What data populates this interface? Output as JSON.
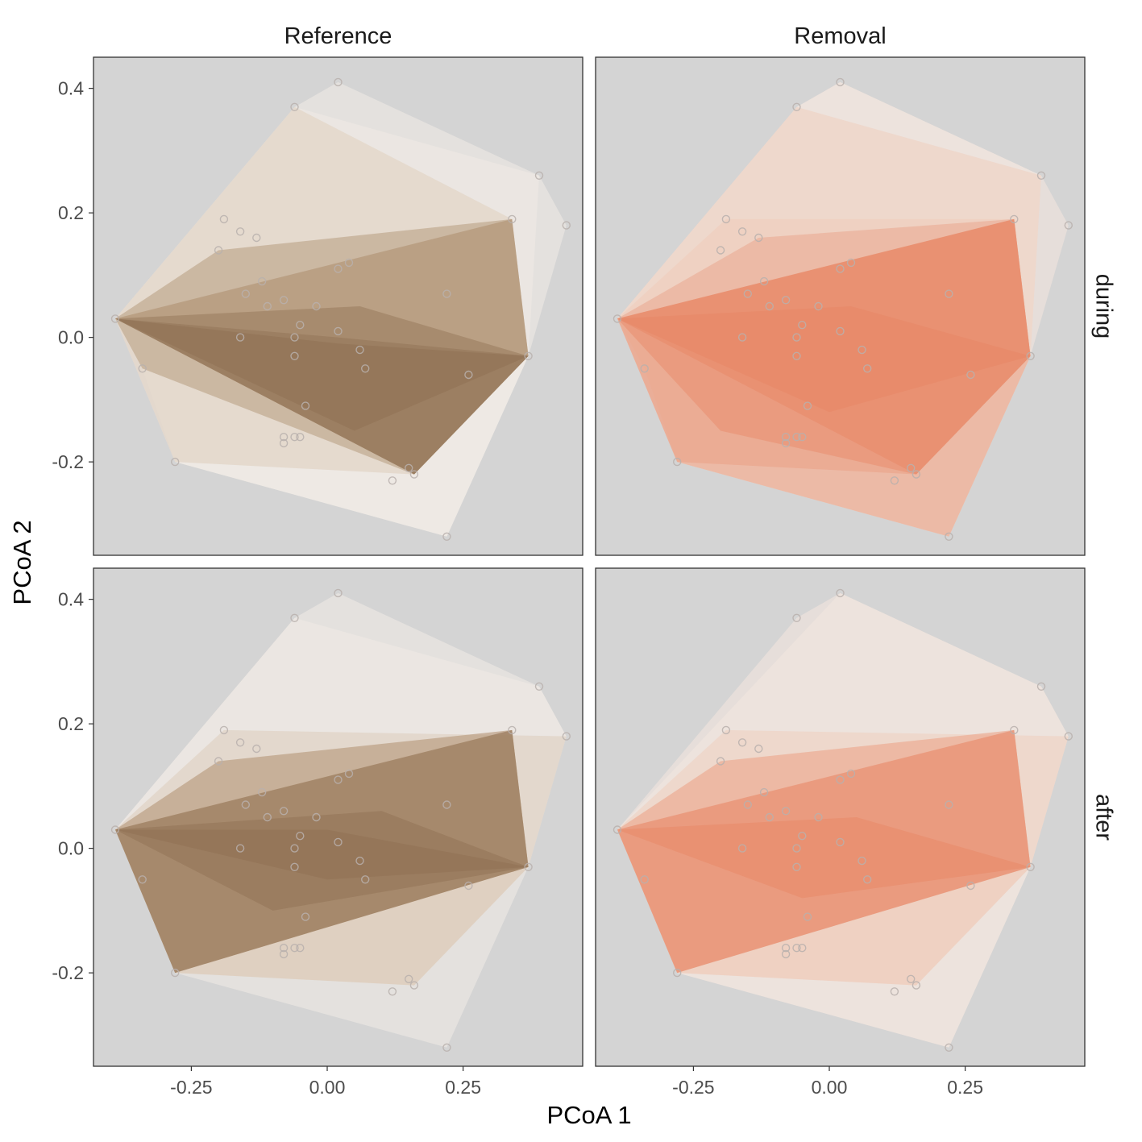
{
  "chart_data": {
    "type": "scatter",
    "subtype": "faceted convex hulls (PCoA ordination)",
    "title": "",
    "xlabel": "PCoA 1",
    "ylabel": "PCoA 2",
    "xlim": [
      -0.43,
      0.47
    ],
    "ylim": [
      -0.35,
      0.45
    ],
    "x_ticks": [
      -0.25,
      0,
      0.25
    ],
    "x_tick_labels": [
      "-0.25",
      "0.00",
      "0.25"
    ],
    "y_ticks": [
      -0.2,
      0,
      0.2,
      0.4
    ],
    "y_tick_labels": [
      "-0.2",
      "0.0",
      "0.2",
      "0.4"
    ],
    "grid": false,
    "panel_background": "#d4d4d4",
    "column_facets": [
      "Reference",
      "Removal"
    ],
    "row_facets": [
      "during",
      "after"
    ],
    "colors": {
      "Reference": [
        "#f3eee7",
        "#d9c6b0",
        "#a68462",
        "#8a6a4c"
      ],
      "Removal": [
        "#f7e8e0",
        "#f0c7b4",
        "#e9987c",
        "#e8825e"
      ],
      "point": "#b8b0ad"
    },
    "points": [
      [
        0.02,
        0.41
      ],
      [
        -0.06,
        0.37
      ],
      [
        0.39,
        0.26
      ],
      [
        0.44,
        0.18
      ],
      [
        0.34,
        0.19
      ],
      [
        -0.19,
        0.19
      ],
      [
        -0.16,
        0.17
      ],
      [
        -0.13,
        0.16
      ],
      [
        -0.2,
        0.14
      ],
      [
        0.04,
        0.12
      ],
      [
        0.02,
        0.11
      ],
      [
        -0.12,
        0.09
      ],
      [
        -0.15,
        0.07
      ],
      [
        -0.08,
        0.06
      ],
      [
        -0.11,
        0.05
      ],
      [
        0.22,
        0.07
      ],
      [
        -0.02,
        0.05
      ],
      [
        -0.39,
        0.03
      ],
      [
        -0.05,
        0.02
      ],
      [
        -0.16,
        0.0
      ],
      [
        0.02,
        0.01
      ],
      [
        -0.06,
        0.0
      ],
      [
        -0.06,
        -0.03
      ],
      [
        0.37,
        -0.03
      ],
      [
        0.06,
        -0.02
      ],
      [
        0.07,
        -0.05
      ],
      [
        0.26,
        -0.06
      ],
      [
        -0.34,
        -0.05
      ],
      [
        -0.04,
        -0.11
      ],
      [
        -0.08,
        -0.16
      ],
      [
        -0.05,
        -0.16
      ],
      [
        -0.06,
        -0.16
      ],
      [
        -0.08,
        -0.17
      ],
      [
        0.15,
        -0.21
      ],
      [
        0.16,
        -0.22
      ],
      [
        -0.28,
        -0.2
      ],
      [
        0.12,
        -0.23
      ],
      [
        0.22,
        -0.32
      ]
    ],
    "panels": [
      {
        "column": "Reference",
        "row": "during",
        "hulls": [
          [
            [
              0.02,
              0.41
            ],
            [
              -0.06,
              0.37
            ],
            [
              -0.39,
              0.03
            ],
            [
              -0.28,
              -0.2
            ],
            [
              0.22,
              -0.32
            ],
            [
              0.37,
              -0.03
            ],
            [
              0.44,
              0.18
            ],
            [
              0.39,
              0.26
            ]
          ],
          [
            [
              -0.06,
              0.37
            ],
            [
              -0.39,
              0.03
            ],
            [
              -0.28,
              -0.2
            ],
            [
              0.22,
              -0.32
            ],
            [
              0.37,
              -0.03
            ],
            [
              0.39,
              0.26
            ]
          ],
          [
            [
              -0.39,
              0.03
            ],
            [
              -0.34,
              -0.05
            ],
            [
              -0.28,
              -0.2
            ],
            [
              0.22,
              -0.32
            ],
            [
              0.37,
              -0.03
            ],
            [
              0.34,
              0.19
            ],
            [
              -0.06,
              0.37
            ]
          ],
          [
            [
              -0.06,
              0.37
            ],
            [
              -0.39,
              0.03
            ],
            [
              0.16,
              -0.22
            ],
            [
              0.37,
              -0.03
            ],
            [
              0.34,
              0.19
            ]
          ],
          [
            [
              -0.39,
              0.03
            ],
            [
              -0.28,
              -0.2
            ],
            [
              0.16,
              -0.22
            ],
            [
              0.37,
              -0.03
            ],
            [
              0.34,
              0.19
            ]
          ],
          [
            [
              -0.39,
              0.03
            ],
            [
              -0.34,
              -0.05
            ],
            [
              0.16,
              -0.22
            ],
            [
              0.37,
              -0.03
            ],
            [
              0.34,
              0.19
            ],
            [
              -0.2,
              0.14
            ]
          ],
          [
            [
              -0.39,
              0.03
            ],
            [
              0.16,
              -0.22
            ],
            [
              0.37,
              -0.03
            ],
            [
              0.34,
              0.19
            ]
          ],
          [
            [
              -0.39,
              0.03
            ],
            [
              0.16,
              -0.22
            ],
            [
              0.37,
              -0.03
            ],
            [
              0.06,
              0.05
            ]
          ],
          [
            [
              -0.39,
              0.03
            ],
            [
              0.16,
              -0.22
            ],
            [
              0.37,
              -0.03
            ],
            [
              0.02,
              0.0
            ]
          ],
          [
            [
              -0.39,
              0.03
            ],
            [
              0.05,
              -0.15
            ],
            [
              0.37,
              -0.03
            ],
            [
              0.02,
              -0.01
            ]
          ]
        ]
      },
      {
        "column": "Removal",
        "row": "during",
        "hulls": [
          [
            [
              0.02,
              0.41
            ],
            [
              -0.06,
              0.37
            ],
            [
              -0.39,
              0.03
            ],
            [
              -0.28,
              -0.2
            ],
            [
              0.22,
              -0.32
            ],
            [
              0.37,
              -0.03
            ],
            [
              0.44,
              0.18
            ],
            [
              0.39,
              0.26
            ]
          ],
          [
            [
              0.02,
              0.41
            ],
            [
              -0.06,
              0.37
            ],
            [
              -0.39,
              0.03
            ],
            [
              -0.28,
              -0.2
            ],
            [
              0.22,
              -0.32
            ],
            [
              0.37,
              -0.03
            ],
            [
              0.39,
              0.26
            ]
          ],
          [
            [
              -0.06,
              0.37
            ],
            [
              -0.39,
              0.03
            ],
            [
              -0.28,
              -0.2
            ],
            [
              0.22,
              -0.32
            ],
            [
              0.37,
              -0.03
            ],
            [
              0.39,
              0.26
            ]
          ],
          [
            [
              -0.39,
              0.03
            ],
            [
              -0.34,
              -0.05
            ],
            [
              -0.28,
              -0.2
            ],
            [
              0.22,
              -0.32
            ],
            [
              0.37,
              -0.03
            ],
            [
              0.34,
              0.19
            ],
            [
              -0.19,
              0.19
            ]
          ],
          [
            [
              -0.39,
              0.03
            ],
            [
              -0.28,
              -0.2
            ],
            [
              0.16,
              -0.22
            ],
            [
              0.37,
              -0.03
            ],
            [
              0.34,
              0.19
            ]
          ],
          [
            [
              -0.39,
              0.03
            ],
            [
              -0.28,
              -0.2
            ],
            [
              0.22,
              -0.32
            ],
            [
              0.37,
              -0.03
            ],
            [
              0.34,
              0.19
            ],
            [
              -0.13,
              0.16
            ]
          ],
          [
            [
              -0.39,
              0.03
            ],
            [
              -0.2,
              -0.15
            ],
            [
              0.16,
              -0.22
            ],
            [
              0.37,
              -0.03
            ],
            [
              0.34,
              0.19
            ]
          ],
          [
            [
              -0.39,
              0.03
            ],
            [
              0.16,
              -0.22
            ],
            [
              0.37,
              -0.03
            ],
            [
              0.34,
              0.19
            ]
          ],
          [
            [
              -0.39,
              0.03
            ],
            [
              0.0,
              -0.12
            ],
            [
              0.37,
              -0.03
            ],
            [
              0.04,
              0.05
            ]
          ]
        ]
      },
      {
        "column": "Reference",
        "row": "after",
        "hulls": [
          [
            [
              0.02,
              0.41
            ],
            [
              -0.06,
              0.37
            ],
            [
              -0.39,
              0.03
            ],
            [
              -0.28,
              -0.2
            ],
            [
              0.22,
              -0.32
            ],
            [
              0.37,
              -0.03
            ],
            [
              0.44,
              0.18
            ],
            [
              0.39,
              0.26
            ]
          ],
          [
            [
              -0.06,
              0.37
            ],
            [
              -0.39,
              0.03
            ],
            [
              -0.28,
              -0.2
            ],
            [
              0.16,
              -0.22
            ],
            [
              0.37,
              -0.03
            ],
            [
              0.44,
              0.18
            ],
            [
              0.39,
              0.26
            ]
          ],
          [
            [
              -0.39,
              0.03
            ],
            [
              -0.28,
              -0.2
            ],
            [
              0.16,
              -0.22
            ],
            [
              0.37,
              -0.03
            ],
            [
              0.44,
              0.18
            ],
            [
              -0.19,
              0.19
            ]
          ],
          [
            [
              -0.39,
              0.03
            ],
            [
              -0.28,
              -0.2
            ],
            [
              0.16,
              -0.22
            ],
            [
              0.37,
              -0.03
            ],
            [
              0.34,
              0.19
            ],
            [
              -0.2,
              0.14
            ]
          ],
          [
            [
              -0.39,
              0.03
            ],
            [
              -0.28,
              -0.2
            ],
            [
              0.37,
              -0.03
            ],
            [
              0.34,
              0.19
            ],
            [
              -0.2,
              0.14
            ]
          ],
          [
            [
              -0.39,
              0.03
            ],
            [
              -0.28,
              -0.2
            ],
            [
              0.37,
              -0.03
            ],
            [
              0.34,
              0.19
            ]
          ],
          [
            [
              -0.39,
              0.03
            ],
            [
              -0.28,
              -0.2
            ],
            [
              0.37,
              -0.03
            ],
            [
              0.34,
              0.19
            ]
          ],
          [
            [
              -0.39,
              0.03
            ],
            [
              -0.1,
              -0.1
            ],
            [
              0.37,
              -0.03
            ],
            [
              0.1,
              0.06
            ]
          ],
          [
            [
              -0.39,
              0.03
            ],
            [
              0.0,
              -0.05
            ],
            [
              0.37,
              -0.03
            ],
            [
              0.0,
              0.03
            ]
          ]
        ]
      },
      {
        "column": "Removal",
        "row": "after",
        "hulls": [
          [
            [
              0.02,
              0.41
            ],
            [
              -0.06,
              0.37
            ],
            [
              -0.39,
              0.03
            ],
            [
              -0.28,
              -0.2
            ],
            [
              0.22,
              -0.32
            ],
            [
              0.37,
              -0.03
            ],
            [
              0.44,
              0.18
            ],
            [
              0.39,
              0.26
            ]
          ],
          [
            [
              0.02,
              0.41
            ],
            [
              -0.39,
              0.03
            ],
            [
              -0.28,
              -0.2
            ],
            [
              0.22,
              -0.32
            ],
            [
              0.37,
              -0.03
            ],
            [
              0.44,
              0.18
            ],
            [
              0.39,
              0.26
            ]
          ],
          [
            [
              -0.39,
              0.03
            ],
            [
              -0.28,
              -0.2
            ],
            [
              0.16,
              -0.22
            ],
            [
              0.37,
              -0.03
            ],
            [
              0.44,
              0.18
            ],
            [
              -0.19,
              0.19
            ]
          ],
          [
            [
              -0.39,
              0.03
            ],
            [
              -0.28,
              -0.2
            ],
            [
              0.16,
              -0.22
            ],
            [
              0.37,
              -0.03
            ],
            [
              0.34,
              0.19
            ],
            [
              -0.2,
              0.14
            ]
          ],
          [
            [
              -0.39,
              0.03
            ],
            [
              -0.28,
              -0.2
            ],
            [
              0.37,
              -0.03
            ],
            [
              0.34,
              0.19
            ],
            [
              -0.2,
              0.14
            ]
          ],
          [
            [
              -0.39,
              0.03
            ],
            [
              -0.28,
              -0.2
            ],
            [
              0.37,
              -0.03
            ],
            [
              0.34,
              0.19
            ]
          ],
          [
            [
              -0.39,
              0.03
            ],
            [
              -0.28,
              -0.2
            ],
            [
              0.37,
              -0.03
            ],
            [
              0.34,
              0.19
            ]
          ],
          [
            [
              -0.39,
              0.03
            ],
            [
              -0.05,
              -0.08
            ],
            [
              0.37,
              -0.03
            ],
            [
              0.05,
              0.05
            ]
          ]
        ]
      }
    ]
  }
}
